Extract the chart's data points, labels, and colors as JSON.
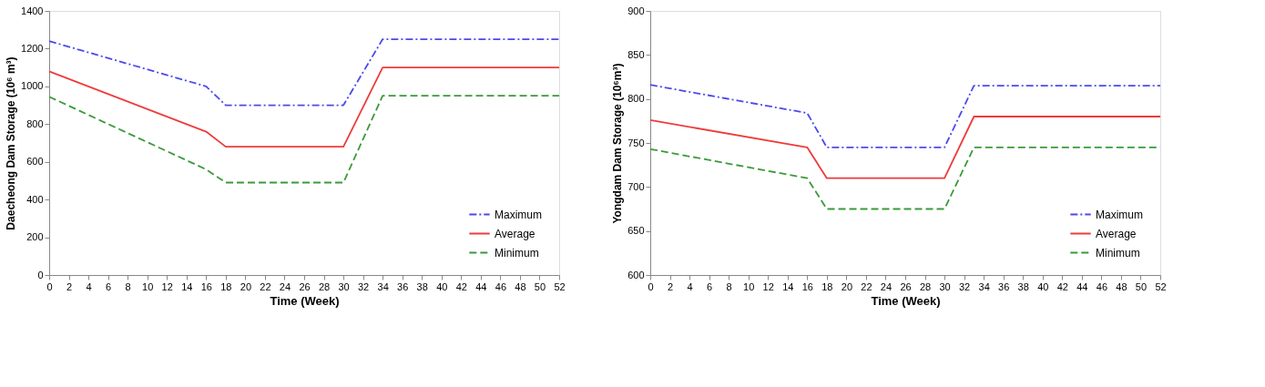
{
  "chart_data": [
    {
      "type": "line",
      "xlabel": "Time (Week)",
      "ylabel": "Daecheong Dam Storage (10⁶ m³)",
      "xlim": [
        0,
        52
      ],
      "xticks": [
        0,
        2,
        4,
        6,
        8,
        10,
        12,
        14,
        16,
        18,
        20,
        22,
        24,
        26,
        28,
        30,
        32,
        34,
        36,
        38,
        40,
        42,
        44,
        46,
        48,
        50,
        52
      ],
      "ylim": [
        0,
        1400
      ],
      "yticks": [
        0,
        200,
        400,
        600,
        800,
        1000,
        1200,
        1400
      ],
      "grid": false,
      "legend": "bottom right",
      "marker": "none",
      "series": [
        {
          "name": "Maximum",
          "color": "#4a4aee",
          "line_style": "dashdot",
          "x": [
            0,
            16,
            18,
            30,
            34,
            52
          ],
          "values": [
            1240,
            1000,
            900,
            900,
            1250,
            1250
          ]
        },
        {
          "name": "Average",
          "color": "#ee3b3b",
          "line_style": "solid",
          "x": [
            0,
            16,
            18,
            30,
            34,
            52
          ],
          "values": [
            1080,
            760,
            680,
            680,
            1100,
            1100
          ]
        },
        {
          "name": "Minimum",
          "color": "#3a9a3a",
          "line_style": "dashed",
          "x": [
            0,
            16,
            18,
            30,
            34,
            52
          ],
          "values": [
            945,
            560,
            490,
            490,
            950,
            950
          ]
        }
      ]
    },
    {
      "type": "line",
      "xlabel": "Time (Week)",
      "ylabel": "Yongdam Dam Storage (10⁶m³)",
      "xlim": [
        0,
        52
      ],
      "xticks": [
        0,
        2,
        4,
        6,
        8,
        10,
        12,
        14,
        16,
        18,
        20,
        22,
        24,
        26,
        28,
        30,
        32,
        34,
        36,
        38,
        40,
        42,
        44,
        46,
        48,
        50,
        52
      ],
      "ylim": [
        600,
        900
      ],
      "yticks": [
        600,
        650,
        700,
        750,
        800,
        850,
        900
      ],
      "grid": false,
      "legend": "bottom right",
      "marker": "none",
      "series": [
        {
          "name": "Maximum",
          "color": "#4a4aee",
          "line_style": "dashdot",
          "x": [
            0,
            16,
            18,
            30,
            33,
            52
          ],
          "values": [
            816,
            784,
            745,
            745,
            815,
            815
          ]
        },
        {
          "name": "Average",
          "color": "#ee3b3b",
          "line_style": "solid",
          "x": [
            0,
            16,
            18,
            30,
            33,
            52
          ],
          "values": [
            776,
            745,
            710,
            710,
            780,
            780
          ]
        },
        {
          "name": "Minimum",
          "color": "#3a9a3a",
          "line_style": "dashed",
          "x": [
            0,
            16,
            18,
            30,
            33,
            52
          ],
          "values": [
            743,
            710,
            675,
            675,
            745,
            745
          ]
        }
      ]
    }
  ]
}
